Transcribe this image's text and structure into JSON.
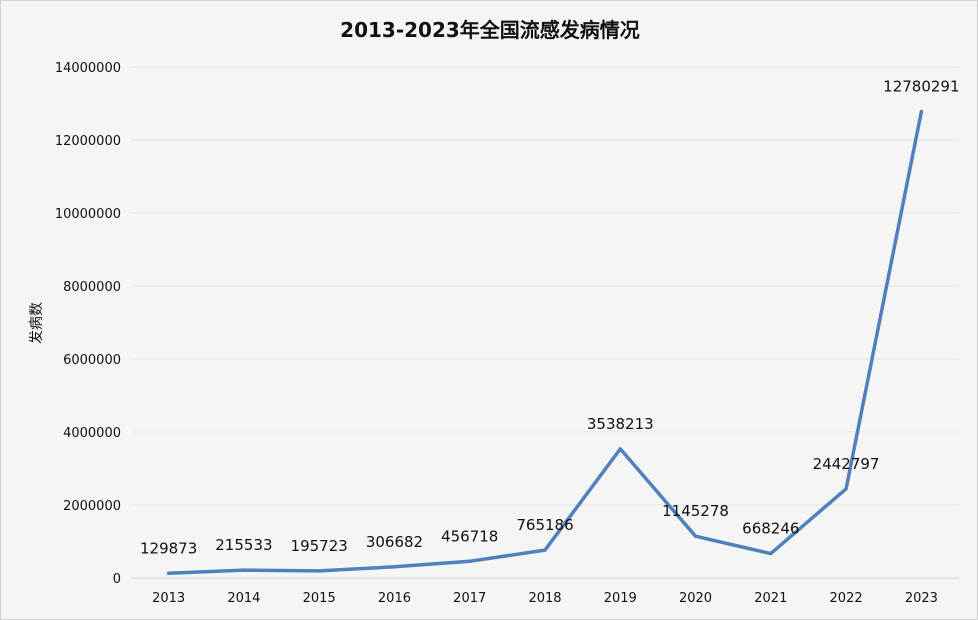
{
  "chart_data": {
    "type": "line",
    "title": "2013-2023年全国流感发病情况",
    "xlabel": "",
    "ylabel": "发病数",
    "categories": [
      "2013",
      "2014",
      "2015",
      "2016",
      "2017",
      "2018",
      "2019",
      "2020",
      "2021",
      "2022",
      "2023"
    ],
    "series": [
      {
        "values": [
          129873,
          215533,
          195723,
          306682,
          456718,
          765186,
          3538213,
          1145278,
          668246,
          2442797,
          12780291
        ]
      }
    ],
    "data_labels": [
      "129873",
      "215533",
      "195723",
      "306682",
      "456718",
      "765186",
      "3538213",
      "1145278",
      "668246",
      "2442797",
      "12780291"
    ],
    "ylim": [
      0,
      14000000
    ],
    "yticks": [
      0,
      2000000,
      4000000,
      6000000,
      8000000,
      10000000,
      12000000,
      14000000
    ],
    "ytick_labels": [
      "0",
      "2000000",
      "4000000",
      "6000000",
      "8000000",
      "10000000",
      "12000000",
      "14000000"
    ],
    "grid": true,
    "legend": "none",
    "line_color": "#4f81bd",
    "background": "#f5f5f5",
    "grid_color": "#e2e2e2"
  }
}
